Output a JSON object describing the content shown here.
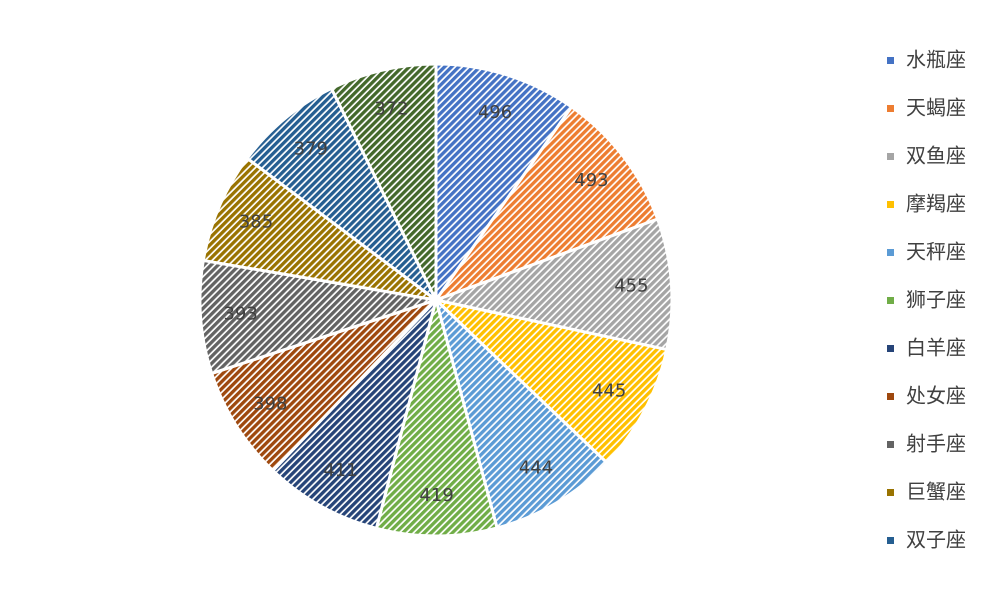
{
  "chart_data": {
    "type": "pie",
    "categories": [
      "水瓶座",
      "天蝎座",
      "双鱼座",
      "摩羯座",
      "天秤座",
      "狮子座",
      "白羊座",
      "处女座",
      "射手座",
      "巨蟹座",
      "双子座",
      null
    ],
    "values": [
      496,
      493,
      455,
      445,
      444,
      419,
      411,
      398,
      393,
      385,
      379,
      372
    ],
    "colors": [
      "#4472c4",
      "#ed7d31",
      "#a5a5a5",
      "#ffc000",
      "#5b9bd5",
      "#70ad47",
      "#264478",
      "#9e480e",
      "#636363",
      "#997300",
      "#255e91",
      "#43682b"
    ],
    "legend": "right"
  }
}
